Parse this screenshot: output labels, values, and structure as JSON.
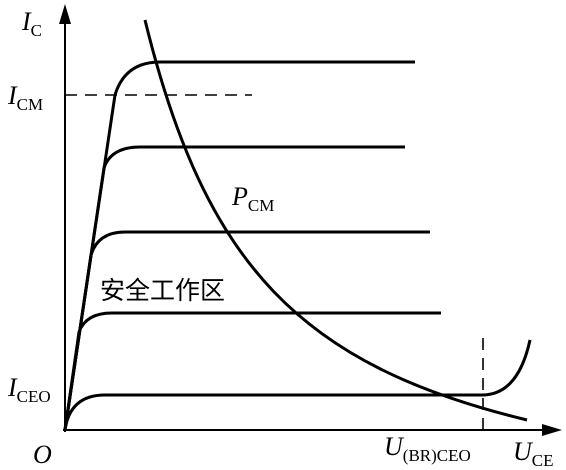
{
  "axes": {
    "y_label": {
      "main": "I",
      "sub": "C"
    },
    "x_label": {
      "main": "U",
      "sub": "CE"
    },
    "origin": "O"
  },
  "labels": {
    "i_cm": {
      "main": "I",
      "sub": "CM"
    },
    "i_ceo": {
      "main": "I",
      "sub": "CEO"
    },
    "p_cm": {
      "main": "P",
      "sub": "CM"
    },
    "u_br_ceo": {
      "main": "U",
      "sub": "(BR)CEO"
    },
    "safe_area": "安全工作区"
  }
}
